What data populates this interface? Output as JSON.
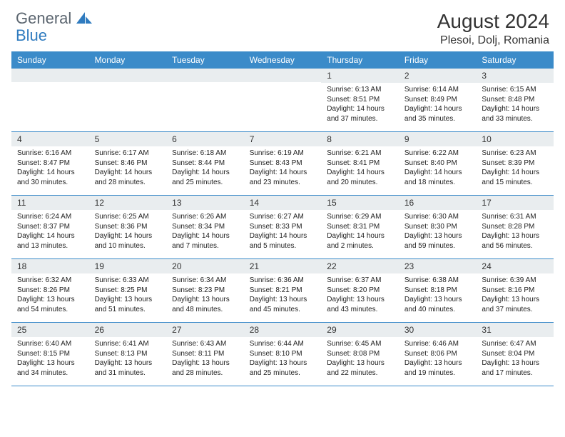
{
  "logo": {
    "gray": "General",
    "blue": "Blue",
    "icon_color": "#2f7bbf"
  },
  "title": "August 2024",
  "location": "Plesoi, Dolj, Romania",
  "dow_bg": "#3b8bc9",
  "dow_fg": "#ffffff",
  "daynum_bg": "#e9edef",
  "week_border": "#3b8bc9",
  "days_of_week": [
    "Sunday",
    "Monday",
    "Tuesday",
    "Wednesday",
    "Thursday",
    "Friday",
    "Saturday"
  ],
  "weeks": [
    [
      {
        "n": "",
        "sunrise": "",
        "sunset": "",
        "daylight": ""
      },
      {
        "n": "",
        "sunrise": "",
        "sunset": "",
        "daylight": ""
      },
      {
        "n": "",
        "sunrise": "",
        "sunset": "",
        "daylight": ""
      },
      {
        "n": "",
        "sunrise": "",
        "sunset": "",
        "daylight": ""
      },
      {
        "n": "1",
        "sunrise": "Sunrise: 6:13 AM",
        "sunset": "Sunset: 8:51 PM",
        "daylight": "Daylight: 14 hours and 37 minutes."
      },
      {
        "n": "2",
        "sunrise": "Sunrise: 6:14 AM",
        "sunset": "Sunset: 8:49 PM",
        "daylight": "Daylight: 14 hours and 35 minutes."
      },
      {
        "n": "3",
        "sunrise": "Sunrise: 6:15 AM",
        "sunset": "Sunset: 8:48 PM",
        "daylight": "Daylight: 14 hours and 33 minutes."
      }
    ],
    [
      {
        "n": "4",
        "sunrise": "Sunrise: 6:16 AM",
        "sunset": "Sunset: 8:47 PM",
        "daylight": "Daylight: 14 hours and 30 minutes."
      },
      {
        "n": "5",
        "sunrise": "Sunrise: 6:17 AM",
        "sunset": "Sunset: 8:46 PM",
        "daylight": "Daylight: 14 hours and 28 minutes."
      },
      {
        "n": "6",
        "sunrise": "Sunrise: 6:18 AM",
        "sunset": "Sunset: 8:44 PM",
        "daylight": "Daylight: 14 hours and 25 minutes."
      },
      {
        "n": "7",
        "sunrise": "Sunrise: 6:19 AM",
        "sunset": "Sunset: 8:43 PM",
        "daylight": "Daylight: 14 hours and 23 minutes."
      },
      {
        "n": "8",
        "sunrise": "Sunrise: 6:21 AM",
        "sunset": "Sunset: 8:41 PM",
        "daylight": "Daylight: 14 hours and 20 minutes."
      },
      {
        "n": "9",
        "sunrise": "Sunrise: 6:22 AM",
        "sunset": "Sunset: 8:40 PM",
        "daylight": "Daylight: 14 hours and 18 minutes."
      },
      {
        "n": "10",
        "sunrise": "Sunrise: 6:23 AM",
        "sunset": "Sunset: 8:39 PM",
        "daylight": "Daylight: 14 hours and 15 minutes."
      }
    ],
    [
      {
        "n": "11",
        "sunrise": "Sunrise: 6:24 AM",
        "sunset": "Sunset: 8:37 PM",
        "daylight": "Daylight: 14 hours and 13 minutes."
      },
      {
        "n": "12",
        "sunrise": "Sunrise: 6:25 AM",
        "sunset": "Sunset: 8:36 PM",
        "daylight": "Daylight: 14 hours and 10 minutes."
      },
      {
        "n": "13",
        "sunrise": "Sunrise: 6:26 AM",
        "sunset": "Sunset: 8:34 PM",
        "daylight": "Daylight: 14 hours and 7 minutes."
      },
      {
        "n": "14",
        "sunrise": "Sunrise: 6:27 AM",
        "sunset": "Sunset: 8:33 PM",
        "daylight": "Daylight: 14 hours and 5 minutes."
      },
      {
        "n": "15",
        "sunrise": "Sunrise: 6:29 AM",
        "sunset": "Sunset: 8:31 PM",
        "daylight": "Daylight: 14 hours and 2 minutes."
      },
      {
        "n": "16",
        "sunrise": "Sunrise: 6:30 AM",
        "sunset": "Sunset: 8:30 PM",
        "daylight": "Daylight: 13 hours and 59 minutes."
      },
      {
        "n": "17",
        "sunrise": "Sunrise: 6:31 AM",
        "sunset": "Sunset: 8:28 PM",
        "daylight": "Daylight: 13 hours and 56 minutes."
      }
    ],
    [
      {
        "n": "18",
        "sunrise": "Sunrise: 6:32 AM",
        "sunset": "Sunset: 8:26 PM",
        "daylight": "Daylight: 13 hours and 54 minutes."
      },
      {
        "n": "19",
        "sunrise": "Sunrise: 6:33 AM",
        "sunset": "Sunset: 8:25 PM",
        "daylight": "Daylight: 13 hours and 51 minutes."
      },
      {
        "n": "20",
        "sunrise": "Sunrise: 6:34 AM",
        "sunset": "Sunset: 8:23 PM",
        "daylight": "Daylight: 13 hours and 48 minutes."
      },
      {
        "n": "21",
        "sunrise": "Sunrise: 6:36 AM",
        "sunset": "Sunset: 8:21 PM",
        "daylight": "Daylight: 13 hours and 45 minutes."
      },
      {
        "n": "22",
        "sunrise": "Sunrise: 6:37 AM",
        "sunset": "Sunset: 8:20 PM",
        "daylight": "Daylight: 13 hours and 43 minutes."
      },
      {
        "n": "23",
        "sunrise": "Sunrise: 6:38 AM",
        "sunset": "Sunset: 8:18 PM",
        "daylight": "Daylight: 13 hours and 40 minutes."
      },
      {
        "n": "24",
        "sunrise": "Sunrise: 6:39 AM",
        "sunset": "Sunset: 8:16 PM",
        "daylight": "Daylight: 13 hours and 37 minutes."
      }
    ],
    [
      {
        "n": "25",
        "sunrise": "Sunrise: 6:40 AM",
        "sunset": "Sunset: 8:15 PM",
        "daylight": "Daylight: 13 hours and 34 minutes."
      },
      {
        "n": "26",
        "sunrise": "Sunrise: 6:41 AM",
        "sunset": "Sunset: 8:13 PM",
        "daylight": "Daylight: 13 hours and 31 minutes."
      },
      {
        "n": "27",
        "sunrise": "Sunrise: 6:43 AM",
        "sunset": "Sunset: 8:11 PM",
        "daylight": "Daylight: 13 hours and 28 minutes."
      },
      {
        "n": "28",
        "sunrise": "Sunrise: 6:44 AM",
        "sunset": "Sunset: 8:10 PM",
        "daylight": "Daylight: 13 hours and 25 minutes."
      },
      {
        "n": "29",
        "sunrise": "Sunrise: 6:45 AM",
        "sunset": "Sunset: 8:08 PM",
        "daylight": "Daylight: 13 hours and 22 minutes."
      },
      {
        "n": "30",
        "sunrise": "Sunrise: 6:46 AM",
        "sunset": "Sunset: 8:06 PM",
        "daylight": "Daylight: 13 hours and 19 minutes."
      },
      {
        "n": "31",
        "sunrise": "Sunrise: 6:47 AM",
        "sunset": "Sunset: 8:04 PM",
        "daylight": "Daylight: 13 hours and 17 minutes."
      }
    ]
  ]
}
